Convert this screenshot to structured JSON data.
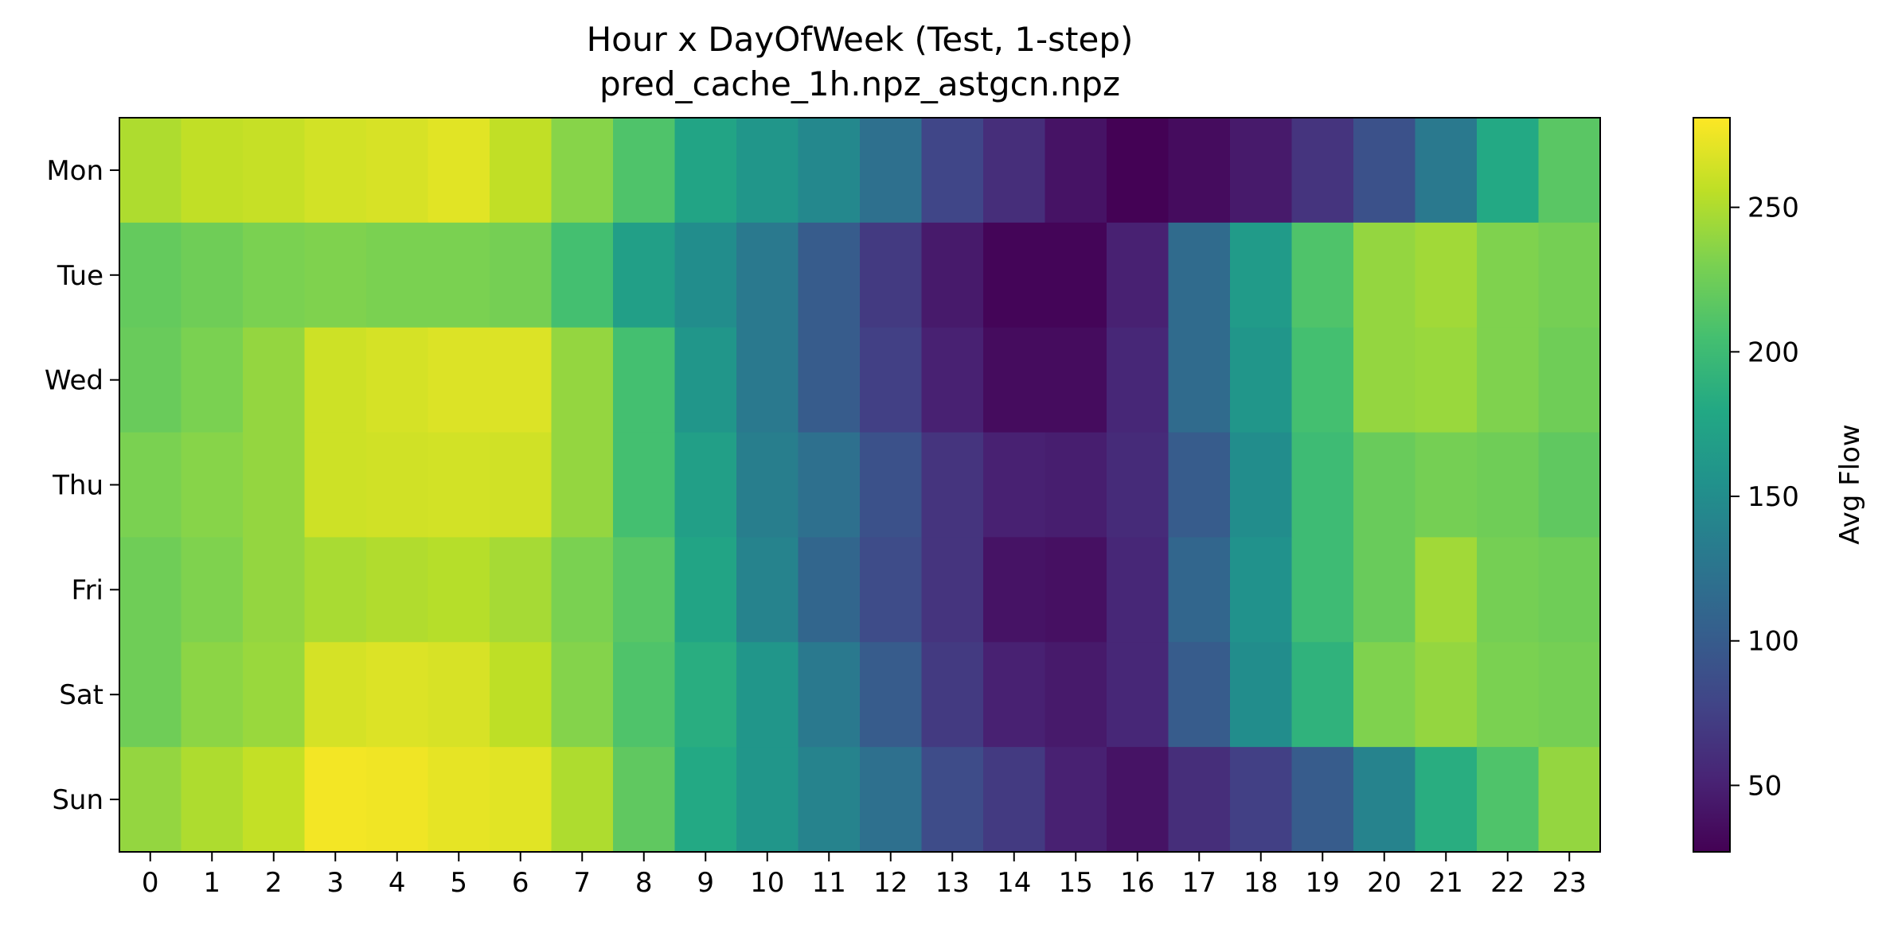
{
  "chart_data": {
    "type": "heatmap",
    "title": "Hour x DayOfWeek (Test, 1-step)",
    "subtitle": "pred_cache_1h.npz_astgcn.npz",
    "x": [
      "0",
      "1",
      "2",
      "3",
      "4",
      "5",
      "6",
      "7",
      "8",
      "9",
      "10",
      "11",
      "12",
      "13",
      "14",
      "15",
      "16",
      "17",
      "18",
      "19",
      "20",
      "21",
      "22",
      "23"
    ],
    "y": [
      "Mon",
      "Tue",
      "Wed",
      "Thu",
      "Fri",
      "Sat",
      "Sun"
    ],
    "values": [
      [
        250,
        257,
        259,
        264,
        266,
        270,
        257,
        235,
        210,
        175,
        160,
        145,
        120,
        80,
        60,
        40,
        28,
        35,
        45,
        65,
        90,
        130,
        180,
        215
      ],
      [
        220,
        225,
        230,
        232,
        230,
        230,
        228,
        205,
        170,
        150,
        130,
        100,
        70,
        45,
        30,
        30,
        50,
        115,
        165,
        210,
        240,
        245,
        232,
        228
      ],
      [
        222,
        230,
        240,
        262,
        265,
        268,
        268,
        240,
        205,
        160,
        130,
        100,
        75,
        50,
        35,
        35,
        55,
        115,
        160,
        205,
        240,
        242,
        232,
        225
      ],
      [
        230,
        235,
        240,
        262,
        263,
        264,
        263,
        240,
        205,
        170,
        135,
        120,
        90,
        65,
        50,
        48,
        58,
        100,
        150,
        200,
        222,
        228,
        225,
        218
      ],
      [
        225,
        232,
        240,
        248,
        251,
        253,
        247,
        230,
        214,
        175,
        140,
        110,
        85,
        65,
        40,
        38,
        55,
        110,
        155,
        200,
        222,
        245,
        228,
        225
      ],
      [
        225,
        237,
        242,
        265,
        268,
        266,
        256,
        234,
        210,
        185,
        160,
        130,
        100,
        70,
        50,
        45,
        55,
        100,
        150,
        190,
        232,
        240,
        230,
        228
      ],
      [
        240,
        250,
        258,
        277,
        276,
        272,
        270,
        250,
        218,
        180,
        160,
        140,
        120,
        85,
        70,
        50,
        40,
        60,
        75,
        100,
        140,
        185,
        210,
        240
      ]
    ],
    "vmin": 27,
    "vmax": 281,
    "colormap": "viridis",
    "colorbar": {
      "label": "Avg Flow",
      "ticks": [
        50,
        100,
        150,
        200,
        250
      ]
    }
  }
}
